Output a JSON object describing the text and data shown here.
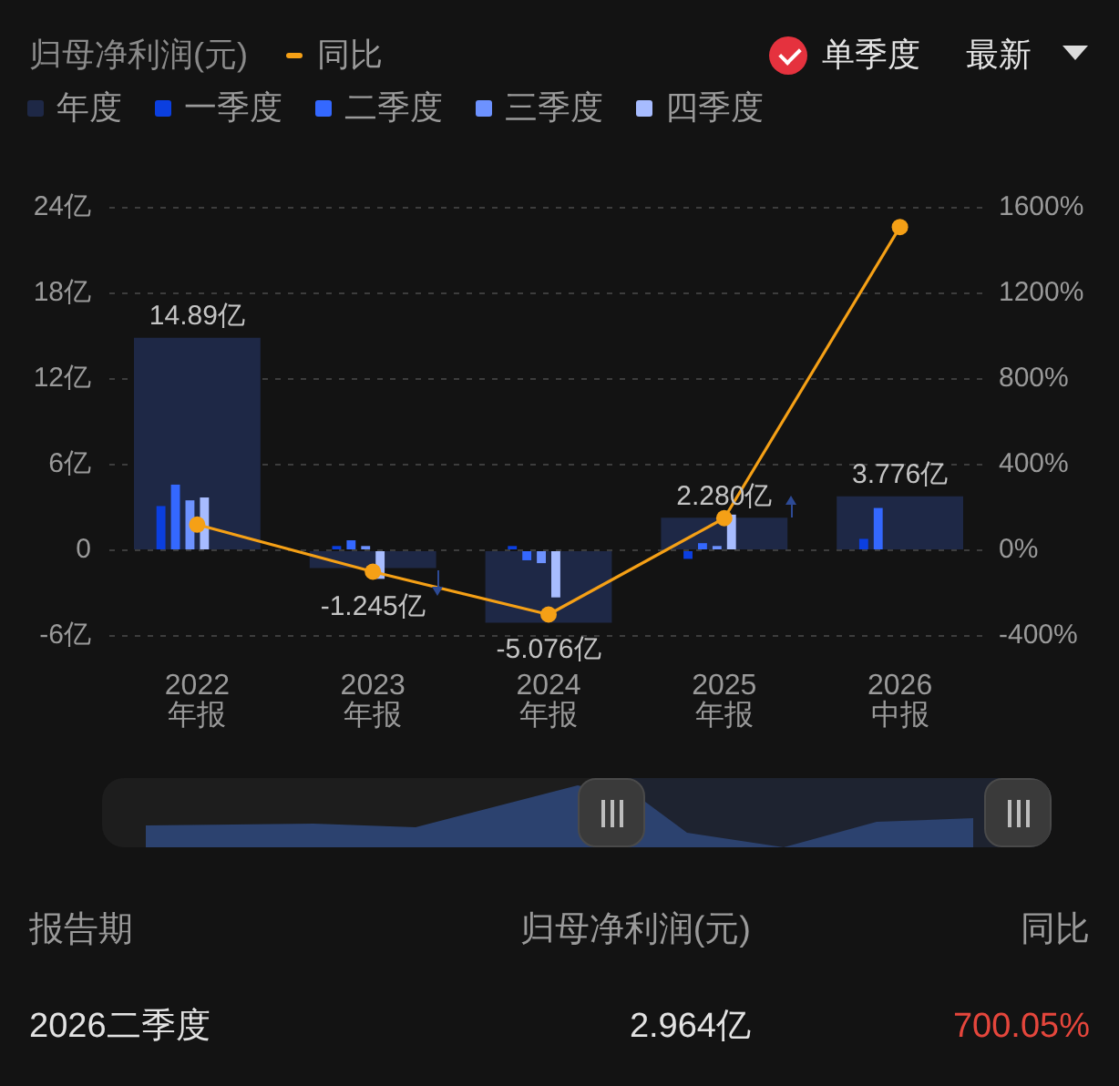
{
  "chart_data": {
    "type": "bar",
    "legend_title": "归母净利润(元)",
    "categories": [
      "2022\n年报",
      "2023\n年报",
      "2024\n年报",
      "2025\n年报",
      "2026\n中报"
    ],
    "series": [
      {
        "name": "年度",
        "color": "#1e2846",
        "values": [
          14.89,
          -1.245,
          -5.076,
          2.28,
          3.776
        ],
        "value_labels": [
          "14.89亿",
          "-1.245亿",
          "-5.076亿",
          "2.280亿",
          "3.776亿"
        ]
      },
      {
        "name": "一季度",
        "color": "#0b3fe0",
        "values": [
          3.1,
          0.3,
          0.3,
          -0.6,
          0.8
        ]
      },
      {
        "name": "二季度",
        "color": "#3468ff",
        "values": [
          4.6,
          0.7,
          -0.7,
          0.5,
          2.964
        ]
      },
      {
        "name": "三季度",
        "color": "#6d92ff",
        "values": [
          3.5,
          0.3,
          -0.9,
          0.3,
          null
        ]
      },
      {
        "name": "四季度",
        "color": "#a7bcff",
        "values": [
          3.7,
          -2.0,
          -3.3,
          2.5,
          null
        ]
      },
      {
        "name": "同比",
        "type": "line",
        "axis": "y2",
        "color": "#f5a016",
        "values": [
          120,
          -100,
          -300,
          150,
          1510
        ]
      }
    ],
    "ylim": [
      -6,
      24
    ],
    "yticks": [
      {
        "value": -6,
        "label": "-6亿"
      },
      0,
      {
        "value": 6,
        "label": "6亿"
      },
      {
        "value": 12,
        "label": "12亿"
      },
      {
        "value": 18,
        "label": "18亿"
      },
      {
        "value": 24,
        "label": "24亿"
      }
    ],
    "y2lim": [
      -400,
      1600
    ],
    "y2ticks": [
      {
        "value": -400,
        "label": "-400%"
      },
      {
        "value": 0,
        "label": "0%"
      },
      {
        "value": 400,
        "label": "400%"
      },
      {
        "value": 800,
        "label": "800%"
      },
      {
        "value": 1200,
        "label": "1200%"
      },
      {
        "value": 1600,
        "label": "1600%"
      }
    ],
    "grid": "y",
    "legend": "top left",
    "marker": "circle",
    "annotations": [
      "单季度",
      "最新",
      "报告期",
      "归母净利润(元)",
      "同比",
      "2026二季度",
      "2.964亿",
      "700.05%"
    ]
  }
}
